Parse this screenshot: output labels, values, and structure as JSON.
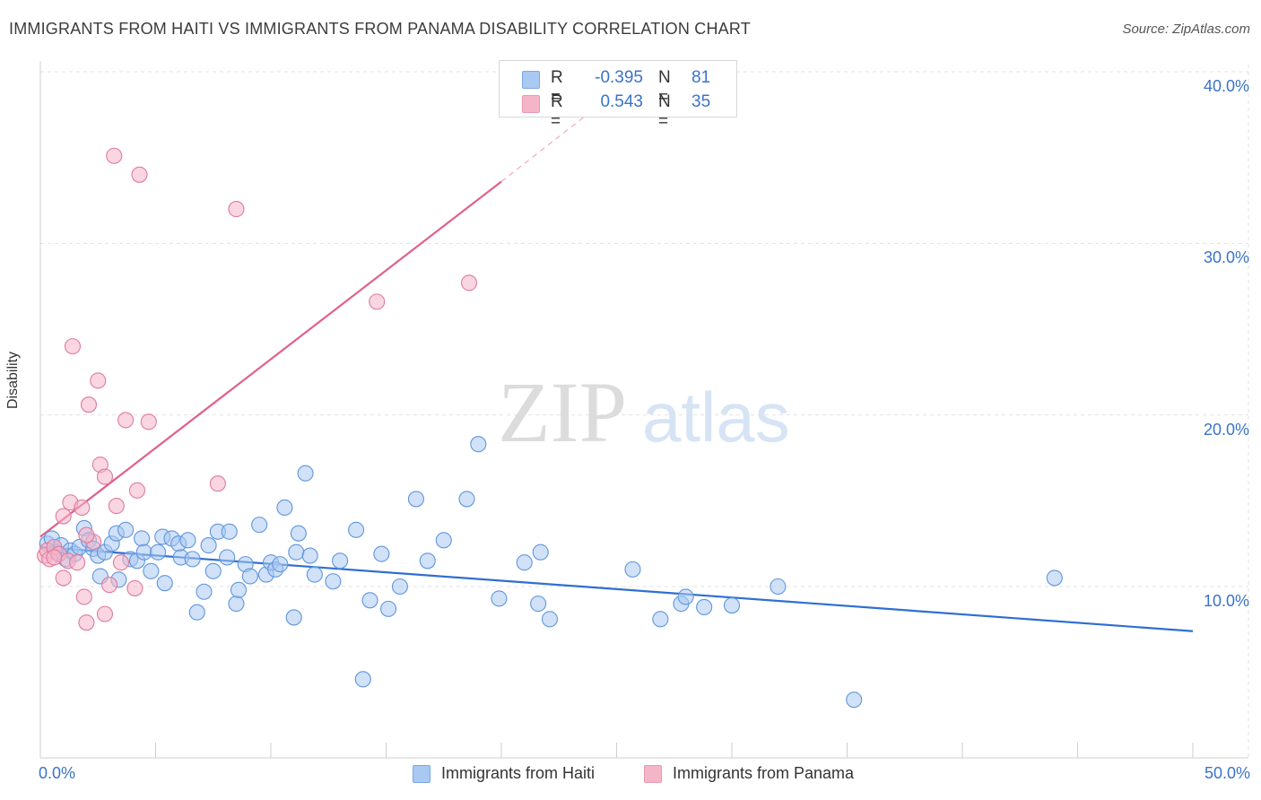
{
  "header": {
    "title": "IMMIGRANTS FROM HAITI VS IMMIGRANTS FROM PANAMA DISABILITY CORRELATION CHART",
    "source": "Source: ZipAtlas.com"
  },
  "watermark": {
    "zip": "ZIP",
    "atlas": "atlas"
  },
  "legend_top": {
    "rows": [
      {
        "r_label": "R =",
        "r_value": "-0.395",
        "n_label": "N =",
        "n_value": "81",
        "color": "#a9c9f3"
      },
      {
        "r_label": "R =",
        "r_value": "0.543",
        "n_label": "N =",
        "n_value": "35",
        "color": "#f4b5c8"
      }
    ]
  },
  "legend_bottom": {
    "items": [
      {
        "label": "Immigrants from Haiti",
        "color": "#a9c9f3"
      },
      {
        "label": "Immigrants from Panama",
        "color": "#f4b5c8"
      }
    ]
  },
  "axis": {
    "ylabel": "Disability",
    "y_ticks": [
      "10.0%",
      "20.0%",
      "30.0%",
      "40.0%"
    ],
    "x_ticks": [
      "0.0%",
      "50.0%"
    ]
  },
  "chart_data": {
    "type": "scatter",
    "title": "IMMIGRANTS FROM HAITI VS IMMIGRANTS FROM PANAMA DISABILITY CORRELATION CHART",
    "xlabel": "",
    "ylabel": "Disability",
    "xlim": [
      0,
      50
    ],
    "ylim": [
      0,
      40
    ],
    "grid": true,
    "legend_position": "bottom",
    "series": [
      {
        "name": "Immigrants from Haiti",
        "color": "#a9c9f3",
        "stroke": "#5f96dc",
        "trend": {
          "x": [
            0,
            50
          ],
          "y": [
            12.3,
            7.4
          ],
          "color": "#2f6fcf"
        },
        "points": [
          [
            0.3,
            12.5
          ],
          [
            0.5,
            12.8
          ],
          [
            0.7,
            12.0
          ],
          [
            0.9,
            12.4
          ],
          [
            1.1,
            11.6
          ],
          [
            1.3,
            12.1
          ],
          [
            1.5,
            11.9
          ],
          [
            1.7,
            12.3
          ],
          [
            1.9,
            13.4
          ],
          [
            2.1,
            12.7
          ],
          [
            2.3,
            12.2
          ],
          [
            2.5,
            11.8
          ],
          [
            2.8,
            12.0
          ],
          [
            2.6,
            10.6
          ],
          [
            3.1,
            12.5
          ],
          [
            3.3,
            13.1
          ],
          [
            3.4,
            10.4
          ],
          [
            3.7,
            13.3
          ],
          [
            3.9,
            11.6
          ],
          [
            4.2,
            11.5
          ],
          [
            4.4,
            12.8
          ],
          [
            4.5,
            12.0
          ],
          [
            4.8,
            10.9
          ],
          [
            5.1,
            12.0
          ],
          [
            5.3,
            12.9
          ],
          [
            5.4,
            10.2
          ],
          [
            5.7,
            12.8
          ],
          [
            6.0,
            12.5
          ],
          [
            6.1,
            11.7
          ],
          [
            6.4,
            12.7
          ],
          [
            6.6,
            11.6
          ],
          [
            6.8,
            8.5
          ],
          [
            7.1,
            9.7
          ],
          [
            7.3,
            12.4
          ],
          [
            7.5,
            10.9
          ],
          [
            7.7,
            13.2
          ],
          [
            8.1,
            11.7
          ],
          [
            8.2,
            13.2
          ],
          [
            8.5,
            9.0
          ],
          [
            8.6,
            9.8
          ],
          [
            8.9,
            11.3
          ],
          [
            9.1,
            10.6
          ],
          [
            9.5,
            13.6
          ],
          [
            9.8,
            10.7
          ],
          [
            10.0,
            11.4
          ],
          [
            10.2,
            11.0
          ],
          [
            10.4,
            11.3
          ],
          [
            10.6,
            14.6
          ],
          [
            11.0,
            8.2
          ],
          [
            11.1,
            12.0
          ],
          [
            11.2,
            13.1
          ],
          [
            11.5,
            16.6
          ],
          [
            11.7,
            11.8
          ],
          [
            11.9,
            10.7
          ],
          [
            12.7,
            10.3
          ],
          [
            13.0,
            11.5
          ],
          [
            13.7,
            13.3
          ],
          [
            14.0,
            4.6
          ],
          [
            14.3,
            9.2
          ],
          [
            14.8,
            11.9
          ],
          [
            15.1,
            8.7
          ],
          [
            15.6,
            10.0
          ],
          [
            16.3,
            15.1
          ],
          [
            16.8,
            11.5
          ],
          [
            17.5,
            12.7
          ],
          [
            18.5,
            15.1
          ],
          [
            19.0,
            18.3
          ],
          [
            19.9,
            9.3
          ],
          [
            21.0,
            11.4
          ],
          [
            21.6,
            9.0
          ],
          [
            21.7,
            12.0
          ],
          [
            22.1,
            8.1
          ],
          [
            25.7,
            11.0
          ],
          [
            26.9,
            8.1
          ],
          [
            27.8,
            9.0
          ],
          [
            28.0,
            9.4
          ],
          [
            28.8,
            8.8
          ],
          [
            30.0,
            8.9
          ],
          [
            32.0,
            10.0
          ],
          [
            35.3,
            3.4
          ],
          [
            44.0,
            10.5
          ]
        ]
      },
      {
        "name": "Immigrants from Panama",
        "color": "#f4b5c8",
        "stroke": "#e07a9c",
        "trend": {
          "x": [
            0,
            20
          ],
          "y": [
            12.9,
            33.6
          ],
          "color": "#e0608d"
        },
        "trend_dashed": {
          "x": [
            20,
            24
          ],
          "y": [
            33.6,
            37.8
          ]
        },
        "points": [
          [
            0.2,
            11.8
          ],
          [
            0.3,
            12.1
          ],
          [
            0.4,
            11.6
          ],
          [
            0.6,
            12.3
          ],
          [
            0.8,
            11.9
          ],
          [
            1.0,
            14.1
          ],
          [
            1.0,
            10.5
          ],
          [
            1.2,
            11.5
          ],
          [
            1.3,
            14.9
          ],
          [
            1.4,
            24.0
          ],
          [
            1.6,
            11.4
          ],
          [
            1.8,
            14.6
          ],
          [
            1.9,
            9.4
          ],
          [
            2.0,
            7.9
          ],
          [
            2.1,
            20.6
          ],
          [
            2.3,
            12.6
          ],
          [
            2.5,
            22.0
          ],
          [
            2.6,
            17.1
          ],
          [
            2.8,
            16.4
          ],
          [
            2.8,
            8.4
          ],
          [
            3.0,
            10.1
          ],
          [
            3.2,
            35.1
          ],
          [
            3.3,
            14.7
          ],
          [
            3.5,
            11.4
          ],
          [
            3.7,
            19.7
          ],
          [
            4.1,
            9.9
          ],
          [
            4.2,
            15.6
          ],
          [
            4.3,
            34.0
          ],
          [
            4.7,
            19.6
          ],
          [
            7.7,
            16.0
          ],
          [
            8.5,
            32.0
          ],
          [
            14.6,
            26.6
          ],
          [
            18.6,
            27.7
          ],
          [
            2.0,
            13.0
          ],
          [
            0.6,
            11.7
          ]
        ]
      }
    ]
  }
}
